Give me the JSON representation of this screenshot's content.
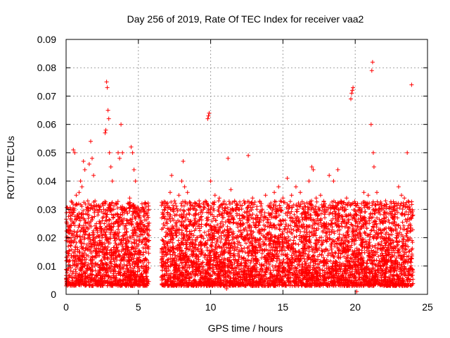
{
  "chart_data": {
    "type": "scatter",
    "title": "Day 256 of 2019, Rate Of TEC Index for receiver vaa2",
    "xlabel": "GPS time / hours",
    "ylabel": "ROTI / TECUs",
    "xlim": [
      0,
      25
    ],
    "ylim": [
      0,
      0.09
    ],
    "xticks": [
      0,
      5,
      10,
      15,
      20,
      25
    ],
    "xtick_labels": [
      "0",
      "5",
      "10",
      "15",
      "20",
      "25"
    ],
    "yticks": [
      0,
      0.01,
      0.02,
      0.03,
      0.04,
      0.05,
      0.06,
      0.07,
      0.08,
      0.09
    ],
    "ytick_labels": [
      "0",
      "0.01",
      "0.02",
      "0.03",
      "0.04",
      "0.05",
      "0.06",
      "0.07",
      "0.08",
      "0.09"
    ],
    "grid": true,
    "marker": "+",
    "color": "#ff0000",
    "series": [
      {
        "name": "ROTI",
        "points": [
          [
            0.1,
            0.012
          ],
          [
            0.2,
            0.024
          ],
          [
            0.3,
            0.03
          ],
          [
            0.4,
            0.019
          ],
          [
            0.5,
            0.051
          ],
          [
            0.6,
            0.05
          ],
          [
            0.7,
            0.035
          ],
          [
            0.8,
            0.028
          ],
          [
            0.9,
            0.036
          ],
          [
            1.0,
            0.04
          ],
          [
            1.1,
            0.038
          ],
          [
            1.2,
            0.047
          ],
          [
            1.3,
            0.044
          ],
          [
            1.4,
            0.03
          ],
          [
            1.5,
            0.033
          ],
          [
            1.6,
            0.046
          ],
          [
            1.7,
            0.054
          ],
          [
            1.8,
            0.048
          ],
          [
            1.9,
            0.042
          ],
          [
            2.0,
            0.03
          ],
          [
            2.1,
            0.025
          ],
          [
            2.2,
            0.028
          ],
          [
            2.3,
            0.03
          ],
          [
            2.4,
            0.022
          ],
          [
            2.5,
            0.026
          ],
          [
            2.6,
            0.03
          ],
          [
            2.7,
            0.057
          ],
          [
            2.75,
            0.058
          ],
          [
            2.8,
            0.075
          ],
          [
            2.85,
            0.073
          ],
          [
            2.9,
            0.065
          ],
          [
            2.95,
            0.062
          ],
          [
            3.0,
            0.05
          ],
          [
            3.1,
            0.045
          ],
          [
            3.2,
            0.04
          ],
          [
            3.3,
            0.03
          ],
          [
            3.5,
            0.032
          ],
          [
            3.6,
            0.05
          ],
          [
            3.7,
            0.048
          ],
          [
            3.8,
            0.06
          ],
          [
            3.9,
            0.05
          ],
          [
            4.0,
            0.03
          ],
          [
            4.2,
            0.025
          ],
          [
            4.4,
            0.034
          ],
          [
            4.5,
            0.052
          ],
          [
            4.6,
            0.05
          ],
          [
            4.7,
            0.044
          ],
          [
            4.8,
            0.04
          ],
          [
            4.9,
            0.03
          ],
          [
            5.0,
            0.028
          ],
          [
            5.5,
            0.032
          ],
          [
            5.7,
            0.03
          ],
          [
            6.8,
            0.03
          ],
          [
            7.0,
            0.025
          ],
          [
            7.2,
            0.036
          ],
          [
            7.3,
            0.042
          ],
          [
            7.5,
            0.033
          ],
          [
            7.8,
            0.035
          ],
          [
            8.0,
            0.04
          ],
          [
            8.1,
            0.047
          ],
          [
            8.2,
            0.038
          ],
          [
            8.4,
            0.036
          ],
          [
            8.6,
            0.03
          ],
          [
            8.9,
            0.028
          ],
          [
            9.2,
            0.033
          ],
          [
            9.5,
            0.03
          ],
          [
            9.8,
            0.062
          ],
          [
            9.85,
            0.063
          ],
          [
            9.9,
            0.064
          ],
          [
            10.0,
            0.04
          ],
          [
            10.3,
            0.035
          ],
          [
            10.6,
            0.034
          ],
          [
            10.9,
            0.032
          ],
          [
            11.2,
            0.048
          ],
          [
            11.4,
            0.037
          ],
          [
            11.8,
            0.032
          ],
          [
            12.0,
            0.03
          ],
          [
            12.3,
            0.033
          ],
          [
            12.6,
            0.049
          ],
          [
            12.9,
            0.034
          ],
          [
            13.2,
            0.03
          ],
          [
            13.5,
            0.032
          ],
          [
            13.8,
            0.035
          ],
          [
            14.1,
            0.031
          ],
          [
            14.4,
            0.036
          ],
          [
            14.7,
            0.038
          ],
          [
            15.0,
            0.034
          ],
          [
            15.3,
            0.041
          ],
          [
            15.6,
            0.035
          ],
          [
            15.9,
            0.038
          ],
          [
            16.2,
            0.036
          ],
          [
            16.5,
            0.031
          ],
          [
            16.8,
            0.04
          ],
          [
            17.0,
            0.045
          ],
          [
            17.1,
            0.044
          ],
          [
            17.3,
            0.034
          ],
          [
            17.6,
            0.035
          ],
          [
            17.9,
            0.032
          ],
          [
            18.2,
            0.042
          ],
          [
            18.5,
            0.04
          ],
          [
            18.8,
            0.044
          ],
          [
            19.1,
            0.03
          ],
          [
            19.4,
            0.034
          ],
          [
            19.7,
            0.069
          ],
          [
            19.75,
            0.071
          ],
          [
            19.8,
            0.072
          ],
          [
            19.85,
            0.073
          ],
          [
            20.0,
            0.032
          ],
          [
            20.3,
            0.03
          ],
          [
            20.6,
            0.036
          ],
          [
            20.9,
            0.035
          ],
          [
            21.1,
            0.06
          ],
          [
            21.15,
            0.079
          ],
          [
            21.2,
            0.082
          ],
          [
            21.25,
            0.05
          ],
          [
            21.3,
            0.045
          ],
          [
            21.5,
            0.036
          ],
          [
            21.8,
            0.032
          ],
          [
            22.1,
            0.033
          ],
          [
            22.4,
            0.031
          ],
          [
            22.7,
            0.032
          ],
          [
            23.0,
            0.038
          ],
          [
            23.2,
            0.035
          ],
          [
            23.4,
            0.034
          ],
          [
            23.6,
            0.05
          ],
          [
            23.8,
            0.03
          ],
          [
            23.9,
            0.074
          ],
          [
            24.0,
            0.028
          ],
          [
            1.3,
            0.01
          ],
          [
            2.1,
            0.015
          ],
          [
            3.3,
            0.008
          ],
          [
            4.4,
            0.012
          ],
          [
            5.2,
            0.006
          ],
          [
            7.5,
            0.01
          ],
          [
            9.1,
            0.009
          ],
          [
            10.8,
            0.011
          ],
          [
            12.4,
            0.005
          ],
          [
            14.0,
            0.013
          ],
          [
            15.7,
            0.009
          ],
          [
            17.2,
            0.012
          ],
          [
            18.6,
            0.007
          ],
          [
            20.2,
            0.004
          ],
          [
            21.7,
            0.01
          ],
          [
            23.1,
            0.008
          ],
          [
            0.6,
            0.004
          ],
          [
            8.3,
            0.004
          ],
          [
            11.1,
            0.002
          ],
          [
            16.3,
            0.004
          ],
          [
            20.1,
            0.001
          ],
          [
            22.6,
            0.005
          ],
          [
            13.4,
            0.004
          ],
          [
            19.2,
            0.006
          ]
        ]
      }
    ],
    "segments": [
      {
        "x_start": 0.0,
        "x_end": 5.75
      },
      {
        "x_start": 6.6,
        "x_end": 24.0
      }
    ]
  }
}
